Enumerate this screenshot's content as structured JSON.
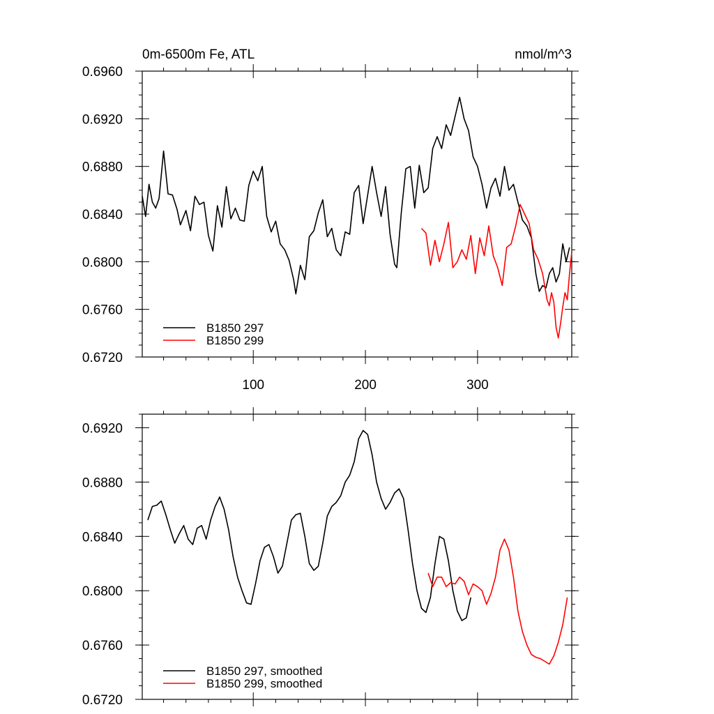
{
  "chart_data": [
    {
      "type": "line",
      "title": "0m-6500m Fe, ATL",
      "units": "nmol/m^3",
      "xlim": [
        1,
        384
      ],
      "ylim": [
        0.672,
        0.696
      ],
      "xticks": [
        100,
        200,
        300
      ],
      "xtick_labels": [
        "100",
        "200",
        "300"
      ],
      "yticks": [
        0.672,
        0.676,
        0.68,
        0.684,
        0.688,
        0.692,
        0.696
      ],
      "ytick_labels": [
        "0.6720",
        "0.6760",
        "0.6800",
        "0.6840",
        "0.6880",
        "0.6920",
        "0.6960"
      ],
      "legend_position": "bottom-left",
      "grid": false,
      "series": [
        {
          "name": "B1850 297",
          "color": "#000000",
          "points": [
            [
              1,
              0.6855
            ],
            [
              4,
              0.6838
            ],
            [
              7,
              0.6865
            ],
            [
              10,
              0.685
            ],
            [
              13,
              0.6845
            ],
            [
              16,
              0.6853
            ],
            [
              20,
              0.6893
            ],
            [
              24,
              0.6857
            ],
            [
              28,
              0.6856
            ],
            [
              32,
              0.6844
            ],
            [
              35,
              0.6831
            ],
            [
              40,
              0.6843
            ],
            [
              44,
              0.6826
            ],
            [
              48,
              0.6855
            ],
            [
              52,
              0.6848
            ],
            [
              56,
              0.685
            ],
            [
              60,
              0.6822
            ],
            [
              64,
              0.6809
            ],
            [
              68,
              0.6847
            ],
            [
              72,
              0.6829
            ],
            [
              76,
              0.6863
            ],
            [
              80,
              0.6836
            ],
            [
              84,
              0.6845
            ],
            [
              88,
              0.6835
            ],
            [
              92,
              0.6834
            ],
            [
              96,
              0.6864
            ],
            [
              100,
              0.6876
            ],
            [
              104,
              0.6868
            ],
            [
              108,
              0.688
            ],
            [
              112,
              0.6838
            ],
            [
              116,
              0.6825
            ],
            [
              120,
              0.6834
            ],
            [
              124,
              0.6815
            ],
            [
              128,
              0.681
            ],
            [
              132,
              0.6801
            ],
            [
              136,
              0.6785
            ],
            [
              138,
              0.6773
            ],
            [
              142,
              0.6797
            ],
            [
              146,
              0.6785
            ],
            [
              150,
              0.6821
            ],
            [
              154,
              0.6826
            ],
            [
              158,
              0.6841
            ],
            [
              162,
              0.6852
            ],
            [
              166,
              0.6821
            ],
            [
              170,
              0.6828
            ],
            [
              174,
              0.681
            ],
            [
              178,
              0.6805
            ],
            [
              182,
              0.6825
            ],
            [
              186,
              0.6823
            ],
            [
              190,
              0.6858
            ],
            [
              194,
              0.6864
            ],
            [
              198,
              0.6832
            ],
            [
              202,
              0.6856
            ],
            [
              206,
              0.688
            ],
            [
              210,
              0.6858
            ],
            [
              214,
              0.6838
            ],
            [
              218,
              0.6863
            ],
            [
              222,
              0.6823
            ],
            [
              226,
              0.6798
            ],
            [
              228,
              0.6795
            ],
            [
              232,
              0.6841
            ],
            [
              236,
              0.6878
            ],
            [
              240,
              0.688
            ],
            [
              244,
              0.6845
            ],
            [
              248,
              0.6881
            ],
            [
              252,
              0.6858
            ],
            [
              256,
              0.6862
            ],
            [
              260,
              0.6895
            ],
            [
              264,
              0.6905
            ],
            [
              268,
              0.6895
            ],
            [
              272,
              0.6915
            ],
            [
              276,
              0.6906
            ],
            [
              280,
              0.6922
            ],
            [
              284,
              0.6938
            ],
            [
              288,
              0.692
            ],
            [
              292,
              0.691
            ],
            [
              296,
              0.6888
            ],
            [
              300,
              0.688
            ],
            [
              304,
              0.6865
            ],
            [
              308,
              0.6845
            ],
            [
              312,
              0.6862
            ],
            [
              316,
              0.687
            ],
            [
              320,
              0.6855
            ],
            [
              324,
              0.688
            ],
            [
              328,
              0.686
            ],
            [
              332,
              0.6865
            ],
            [
              336,
              0.685
            ],
            [
              340,
              0.6835
            ],
            [
              344,
              0.683
            ],
            [
              348,
              0.682
            ],
            [
              352,
              0.679
            ],
            [
              355,
              0.6775
            ],
            [
              358,
              0.678
            ],
            [
              361,
              0.6778
            ],
            [
              364,
              0.679
            ],
            [
              367,
              0.6795
            ],
            [
              370,
              0.6783
            ],
            [
              373,
              0.679
            ],
            [
              376,
              0.6815
            ],
            [
              379,
              0.68
            ],
            [
              382,
              0.6812
            ]
          ]
        },
        {
          "name": "B1850 299",
          "color": "#ff0000",
          "points": [
            [
              250,
              0.6828
            ],
            [
              254,
              0.6824
            ],
            [
              258,
              0.6797
            ],
            [
              262,
              0.6818
            ],
            [
              266,
              0.68
            ],
            [
              270,
              0.6815
            ],
            [
              274,
              0.6833
            ],
            [
              278,
              0.6795
            ],
            [
              282,
              0.68
            ],
            [
              286,
              0.681
            ],
            [
              290,
              0.6802
            ],
            [
              294,
              0.6822
            ],
            [
              298,
              0.679
            ],
            [
              302,
              0.682
            ],
            [
              306,
              0.6805
            ],
            [
              310,
              0.683
            ],
            [
              314,
              0.6805
            ],
            [
              318,
              0.6795
            ],
            [
              322,
              0.678
            ],
            [
              326,
              0.6812
            ],
            [
              330,
              0.6815
            ],
            [
              334,
              0.683
            ],
            [
              338,
              0.6848
            ],
            [
              342,
              0.684
            ],
            [
              346,
              0.6832
            ],
            [
              350,
              0.681
            ],
            [
              354,
              0.6802
            ],
            [
              358,
              0.679
            ],
            [
              362,
              0.6768
            ],
            [
              364,
              0.6763
            ],
            [
              366,
              0.6774
            ],
            [
              368,
              0.6766
            ],
            [
              370,
              0.6745
            ],
            [
              372,
              0.6736
            ],
            [
              374,
              0.6748
            ],
            [
              376,
              0.6762
            ],
            [
              378,
              0.6774
            ],
            [
              380,
              0.6768
            ],
            [
              382,
              0.679
            ],
            [
              384,
              0.6808
            ]
          ]
        }
      ]
    },
    {
      "type": "line",
      "xlim": [
        1,
        384
      ],
      "ylim": [
        0.672,
        0.693
      ],
      "xticks": [
        100,
        200,
        300
      ],
      "yticks": [
        0.672,
        0.676,
        0.68,
        0.684,
        0.688,
        0.692
      ],
      "ytick_labels": [
        "0.6720",
        "0.6760",
        "0.6800",
        "0.6840",
        "0.6880",
        "0.6920"
      ],
      "legend_position": "bottom-left",
      "grid": false,
      "series": [
        {
          "name": "B1850 297, smoothed",
          "color": "#000000",
          "points": [
            [
              6,
              0.6852
            ],
            [
              10,
              0.6862
            ],
            [
              14,
              0.6863
            ],
            [
              18,
              0.6866
            ],
            [
              22,
              0.6856
            ],
            [
              26,
              0.6845
            ],
            [
              30,
              0.6835
            ],
            [
              34,
              0.6842
            ],
            [
              38,
              0.6848
            ],
            [
              42,
              0.6838
            ],
            [
              46,
              0.6834
            ],
            [
              50,
              0.6846
            ],
            [
              54,
              0.6848
            ],
            [
              58,
              0.6838
            ],
            [
              62,
              0.6852
            ],
            [
              66,
              0.6862
            ],
            [
              70,
              0.6869
            ],
            [
              74,
              0.686
            ],
            [
              78,
              0.6845
            ],
            [
              82,
              0.6825
            ],
            [
              86,
              0.681
            ],
            [
              90,
              0.68
            ],
            [
              94,
              0.6791
            ],
            [
              98,
              0.679
            ],
            [
              102,
              0.6805
            ],
            [
              106,
              0.6822
            ],
            [
              110,
              0.6832
            ],
            [
              114,
              0.6834
            ],
            [
              118,
              0.6825
            ],
            [
              122,
              0.6813
            ],
            [
              126,
              0.6818
            ],
            [
              130,
              0.6835
            ],
            [
              134,
              0.6852
            ],
            [
              138,
              0.6856
            ],
            [
              142,
              0.6857
            ],
            [
              146,
              0.684
            ],
            [
              150,
              0.682
            ],
            [
              154,
              0.6815
            ],
            [
              158,
              0.6818
            ],
            [
              162,
              0.6835
            ],
            [
              166,
              0.6855
            ],
            [
              170,
              0.6862
            ],
            [
              174,
              0.6865
            ],
            [
              178,
              0.687
            ],
            [
              182,
              0.688
            ],
            [
              186,
              0.6885
            ],
            [
              190,
              0.6895
            ],
            [
              194,
              0.6912
            ],
            [
              198,
              0.6918
            ],
            [
              202,
              0.6915
            ],
            [
              206,
              0.69
            ],
            [
              210,
              0.688
            ],
            [
              214,
              0.6868
            ],
            [
              218,
              0.686
            ],
            [
              222,
              0.6865
            ],
            [
              226,
              0.6872
            ],
            [
              230,
              0.6875
            ],
            [
              234,
              0.6868
            ],
            [
              238,
              0.6845
            ],
            [
              242,
              0.682
            ],
            [
              246,
              0.68
            ],
            [
              250,
              0.6787
            ],
            [
              254,
              0.6784
            ],
            [
              258,
              0.6795
            ],
            [
              262,
              0.682
            ],
            [
              266,
              0.684
            ],
            [
              270,
              0.6838
            ],
            [
              274,
              0.6822
            ],
            [
              278,
              0.68
            ],
            [
              282,
              0.6785
            ],
            [
              286,
              0.6778
            ],
            [
              290,
              0.678
            ],
            [
              294,
              0.6795
            ]
          ]
        },
        {
          "name": "B1850 299, smoothed",
          "color": "#ff0000",
          "points": [
            [
              256,
              0.6813
            ],
            [
              260,
              0.6803
            ],
            [
              264,
              0.681
            ],
            [
              268,
              0.681
            ],
            [
              272,
              0.6803
            ],
            [
              276,
              0.6806
            ],
            [
              280,
              0.6805
            ],
            [
              284,
              0.681
            ],
            [
              288,
              0.6807
            ],
            [
              292,
              0.6797
            ],
            [
              296,
              0.6805
            ],
            [
              300,
              0.6803
            ],
            [
              304,
              0.68
            ],
            [
              308,
              0.679
            ],
            [
              312,
              0.6798
            ],
            [
              316,
              0.681
            ],
            [
              320,
              0.683
            ],
            [
              324,
              0.6838
            ],
            [
              328,
              0.683
            ],
            [
              332,
              0.681
            ],
            [
              336,
              0.6785
            ],
            [
              340,
              0.677
            ],
            [
              344,
              0.676
            ],
            [
              348,
              0.6753
            ],
            [
              352,
              0.6751
            ],
            [
              356,
              0.675
            ],
            [
              360,
              0.6748
            ],
            [
              364,
              0.6746
            ],
            [
              368,
              0.6752
            ],
            [
              372,
              0.6762
            ],
            [
              376,
              0.6775
            ],
            [
              380,
              0.6795
            ]
          ]
        }
      ]
    }
  ]
}
